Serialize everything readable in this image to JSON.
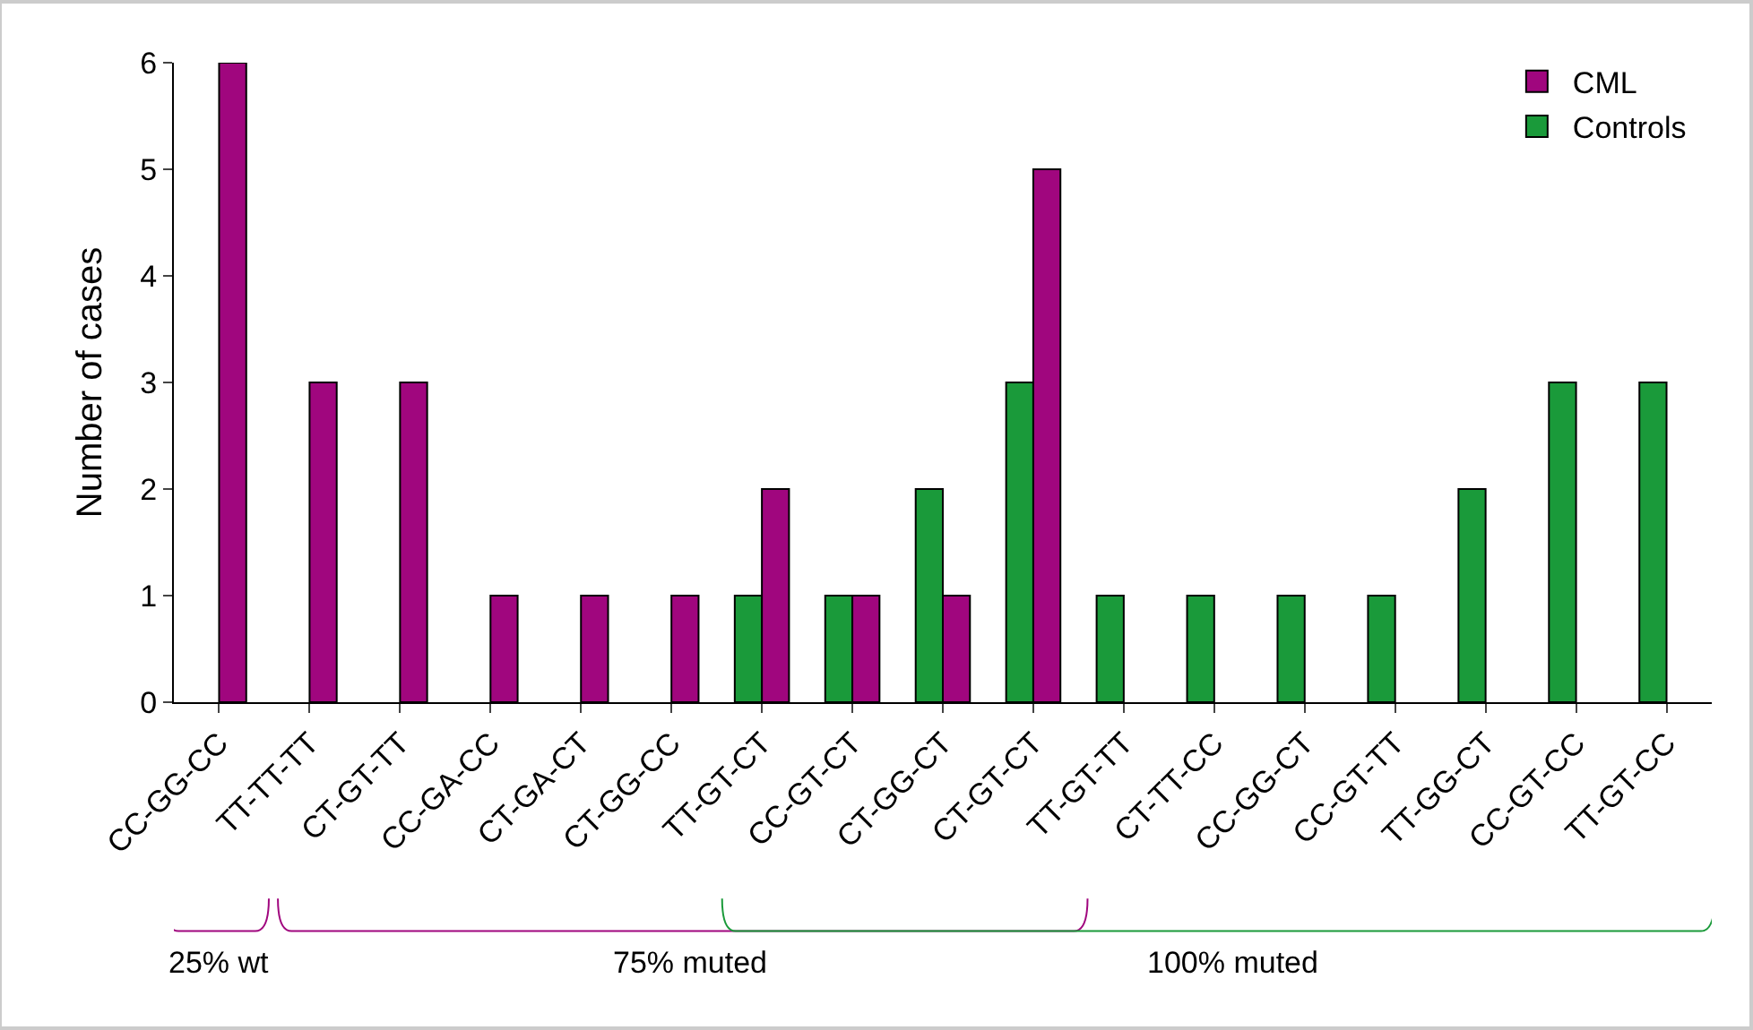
{
  "chart_data": {
    "type": "bar",
    "ylabel": "Number of cases",
    "categories": [
      "CC-GG-CC",
      "TT-TT-TT",
      "CT-GT-TT",
      "CC-GA-CC",
      "CT-GA-CT",
      "CT-GG-CC",
      "TT-GT-CT",
      "CC-GT-CT",
      "CT-GG-CT",
      "CT-GT-CT",
      "TT-GT-TT",
      "CT-TT-CC",
      "CC-GG-CT",
      "CC-GT-TT",
      "TT-GG-CT",
      "CC-GT-CC",
      "TT-GT-CC"
    ],
    "series": [
      {
        "name": "Controls",
        "color": "#1a9a3a",
        "values": [
          null,
          null,
          null,
          null,
          null,
          null,
          1,
          1,
          2,
          3,
          1,
          1,
          1,
          1,
          2,
          3,
          3
        ]
      },
      {
        "name": "CML",
        "color": "#a0067e",
        "values": [
          6,
          3,
          3,
          1,
          1,
          1,
          2,
          1,
          1,
          5,
          null,
          null,
          null,
          null,
          null,
          null,
          null
        ]
      }
    ],
    "ylim": [
      0,
      6
    ],
    "yticks": [
      0,
      1,
      2,
      3,
      4,
      5,
      6
    ],
    "legend": "top right",
    "annotations": [
      "25% wt",
      "75% muted",
      "100% muted"
    ]
  }
}
